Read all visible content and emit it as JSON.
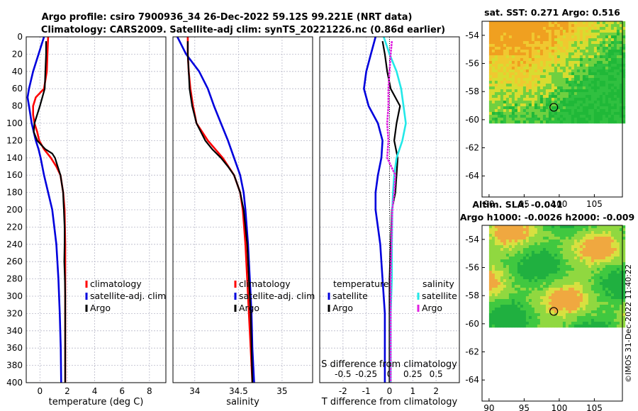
{
  "titles": {
    "line1": "Argo profile: csiro 7900936_34 26-Dec-2022 59.12S 99.221E (NRT data)",
    "line2": "Climatology: CARS2009. Satellite-adj clim: synTS_20221226.nc (0.86d earlier)"
  },
  "map_titles": {
    "sst": "sat. SST: 0.271 Argo: 0.516",
    "sla1": "Altim. SLA: -0.041",
    "sla2": "Argo h1000: -0.0026 h2000: -0.009"
  },
  "footer": {
    "imos": "©IMOS 31-Dec-2022 11:40:22"
  },
  "colors": {
    "climatology": "#ff0000",
    "satellite": "#0000dd",
    "argo": "#000000",
    "cyan": "#22e8e8",
    "magenta": "#e020e0"
  },
  "chart_data": [
    {
      "type": "line",
      "name": "temperature",
      "xlabel": "temperature (deg C)",
      "ylabel": "",
      "xlim": [
        -1,
        9.2
      ],
      "ylim": [
        400,
        0
      ],
      "xticks": [
        "0",
        "2",
        "4",
        "6",
        "8"
      ],
      "yticks": [
        "0",
        "20",
        "40",
        "60",
        "80",
        "100",
        "120",
        "140",
        "160",
        "180",
        "200",
        "220",
        "240",
        "260",
        "280",
        "300",
        "320",
        "340",
        "360",
        "380",
        "400"
      ],
      "legend": [
        "climatology",
        "satellite-adj. clim",
        "Argo"
      ],
      "series": [
        {
          "name": "climatology",
          "depth": [
            0,
            20,
            40,
            60,
            70,
            80,
            90,
            100,
            110,
            120,
            130,
            140,
            150,
            160,
            180,
            200,
            240,
            280,
            320,
            360,
            400
          ],
          "values": [
            0.6,
            0.55,
            0.5,
            0.3,
            -0.3,
            -0.5,
            -0.5,
            -0.4,
            -0.2,
            -0.05,
            0.3,
            0.8,
            1.2,
            1.5,
            1.7,
            1.8,
            1.85,
            1.85,
            1.85,
            1.85,
            1.85
          ]
        },
        {
          "name": "satellite-adj. clim",
          "depth": [
            0,
            20,
            40,
            60,
            70,
            80,
            100,
            120,
            130,
            140,
            160,
            180,
            200,
            240,
            280,
            320,
            360,
            400
          ],
          "values": [
            0.3,
            -0.1,
            -0.5,
            -0.8,
            -0.9,
            -0.8,
            -0.6,
            -0.3,
            -0.1,
            0.05,
            0.3,
            0.6,
            0.9,
            1.2,
            1.35,
            1.45,
            1.52,
            1.55
          ]
        },
        {
          "name": "Argo",
          "depth": [
            5,
            20,
            40,
            60,
            80,
            100,
            110,
            120,
            130,
            135,
            140,
            150,
            160,
            170,
            180,
            190,
            200,
            220,
            240,
            260,
            280,
            300,
            320,
            340,
            360,
            380,
            400
          ],
          "values": [
            0.45,
            0.45,
            0.4,
            0.35,
            0.0,
            -0.4,
            -0.45,
            -0.2,
            0.4,
            0.9,
            1.1,
            1.3,
            1.5,
            1.6,
            1.7,
            1.72,
            1.75,
            1.8,
            1.8,
            1.78,
            1.82,
            1.85,
            1.85,
            1.85,
            1.85,
            1.85,
            1.85
          ]
        }
      ]
    },
    {
      "type": "line",
      "name": "salinity",
      "xlabel": "salinity",
      "xlim": [
        33.75,
        35.35
      ],
      "ylim": [
        400,
        0
      ],
      "xticks": [
        "34",
        "34.5",
        "35"
      ],
      "legend": [
        "climatology",
        "satellite-adj. clim",
        "Argo"
      ],
      "series": [
        {
          "name": "climatology",
          "depth": [
            0,
            20,
            40,
            60,
            80,
            100,
            120,
            140,
            160,
            180,
            200,
            240,
            280,
            320,
            360,
            400
          ],
          "values": [
            33.92,
            33.92,
            33.93,
            33.95,
            33.98,
            34.02,
            34.15,
            34.32,
            34.45,
            34.52,
            34.55,
            34.58,
            34.6,
            34.62,
            34.64,
            34.66
          ]
        },
        {
          "name": "satellite-adj. clim",
          "depth": [
            0,
            20,
            40,
            60,
            80,
            100,
            120,
            140,
            160,
            180,
            200,
            240,
            280,
            320,
            360,
            400
          ],
          "values": [
            33.8,
            33.9,
            34.05,
            34.15,
            34.22,
            34.3,
            34.38,
            34.45,
            34.52,
            34.56,
            34.58,
            34.61,
            34.63,
            34.65,
            34.66,
            34.68
          ]
        },
        {
          "name": "Argo",
          "depth": [
            5,
            20,
            40,
            60,
            80,
            100,
            120,
            130,
            140,
            150,
            160,
            180,
            200,
            240,
            280,
            320,
            360,
            400
          ],
          "values": [
            33.92,
            33.92,
            33.93,
            33.94,
            33.97,
            34.02,
            34.12,
            34.2,
            34.3,
            34.38,
            34.45,
            34.52,
            34.56,
            34.6,
            34.62,
            34.64,
            34.65,
            34.66
          ]
        }
      ]
    },
    {
      "type": "line",
      "name": "difference",
      "xlabel": "T difference from climatology",
      "top_xlabel": "S difference from climatology",
      "xlim": [
        -3,
        3
      ],
      "ylim": [
        400,
        0
      ],
      "xticks": [
        "-2",
        "-1",
        "0",
        "1",
        "2"
      ],
      "top_xticks": [
        "-0.5",
        "-0.25",
        "0",
        "0.25",
        "0.5"
      ],
      "top_xtick_values": [
        -2,
        -1,
        0,
        1,
        2
      ],
      "legend_temperature_title": "temperature",
      "legend_salinity_title": "salinity",
      "legend_temperature": [
        "satellite",
        "Argo"
      ],
      "legend_salinity": [
        "satellite",
        "Argo"
      ],
      "series": [
        {
          "name": "T satellite",
          "depth": [
            0,
            20,
            40,
            60,
            80,
            100,
            120,
            140,
            160,
            180,
            200,
            240,
            280,
            320,
            360,
            400
          ],
          "values": [
            -0.6,
            -0.8,
            -1.0,
            -1.1,
            -0.9,
            -0.5,
            -0.3,
            -0.35,
            -0.5,
            -0.6,
            -0.6,
            -0.4,
            -0.3,
            -0.2,
            -0.2,
            -0.2
          ]
        },
        {
          "name": "T Argo",
          "depth": [
            5,
            20,
            40,
            60,
            80,
            100,
            120,
            140,
            160,
            180,
            200,
            240,
            280,
            320,
            360,
            400
          ],
          "values": [
            -0.3,
            -0.2,
            -0.1,
            0.05,
            0.45,
            0.3,
            0.2,
            0.35,
            0.3,
            0.25,
            0.1,
            0.05,
            0.0,
            0.0,
            0.0,
            0.0
          ]
        },
        {
          "name": "S satellite",
          "depth": [
            0,
            20,
            40,
            60,
            80,
            100,
            120,
            140,
            160,
            180,
            200,
            240,
            280,
            320,
            360,
            400
          ],
          "values": [
            -0.25,
            0.0,
            0.3,
            0.5,
            0.6,
            0.7,
            0.55,
            0.3,
            0.2,
            0.15,
            0.12,
            0.1,
            0.1,
            0.05,
            0.05,
            0.05
          ]
        },
        {
          "name": "S Argo",
          "depth": [
            5,
            20,
            40,
            60,
            80,
            100,
            120,
            140,
            160,
            180,
            200,
            240,
            280,
            320,
            360,
            400
          ],
          "values": [
            0.1,
            0.05,
            0.0,
            -0.05,
            -0.05,
            -0.1,
            -0.05,
            -0.1,
            0.25,
            0.2,
            0.12,
            0.08,
            0.05,
            0.05,
            0.05,
            0.05
          ]
        }
      ]
    },
    {
      "type": "heatmap",
      "name": "sat_sst_map",
      "title": "sat. SST: 0.271 Argo: 0.516",
      "xlim": [
        89,
        109
      ],
      "ylim": [
        -65.5,
        -53
      ],
      "xticks": [
        "90",
        "95",
        "100",
        "105"
      ],
      "yticks": [
        "-54",
        "-56",
        "-58",
        "-60",
        "-62",
        "-64"
      ],
      "data_extent_lat": [
        -60.2,
        -53
      ],
      "marker": {
        "lon": 99.22,
        "lat": -59.12
      }
    },
    {
      "type": "heatmap",
      "name": "altim_sla_map",
      "title": "Altim. SLA: -0.041",
      "xlim": [
        89,
        109
      ],
      "ylim": [
        -65.5,
        -53
      ],
      "xticks": [
        "90",
        "95",
        "100",
        "105"
      ],
      "yticks": [
        "-54",
        "-56",
        "-58",
        "-60",
        "-62",
        "-64"
      ],
      "data_extent_lat": [
        -60.2,
        -53
      ],
      "marker": {
        "lon": 99.22,
        "lat": -59.12
      }
    }
  ]
}
